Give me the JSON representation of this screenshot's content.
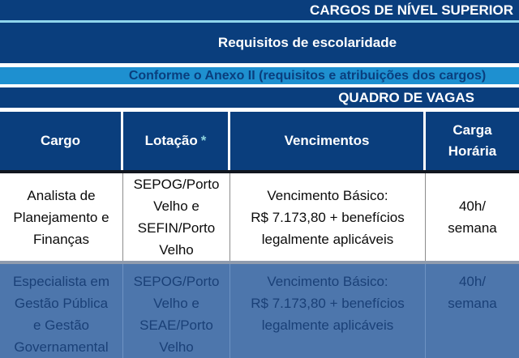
{
  "banners": {
    "cargos_nivel_superior": "CARGOS DE NÍVEL SUPERIOR",
    "requisitos_escolaridade": "Requisitos de escolaridade",
    "conforme_anexo": "Conforme o Anexo II (requisitos e atribuições dos cargos)",
    "quadro_de_vagas": "QUADRO DE VAGAS"
  },
  "colors": {
    "navy": "#0A3E7D",
    "light_blue": "#1E90D0",
    "cyan_separator": "#8FD5EC",
    "selection_blue": "#4D76AC",
    "selection_text": "#1A4077"
  },
  "table": {
    "headers": {
      "cargo": "Cargo",
      "lotacao": "Lotação",
      "lotacao_note": "*",
      "vencimentos": "Vencimentos",
      "carga_horaria": "Carga\nHorária"
    },
    "rows": [
      {
        "cargo": "Analista de\nPlanejamento e\nFinanças",
        "lotacao": "SEPOG/Porto\nVelho e\nSEFIN/Porto\nVelho",
        "vencimentos": "Vencimento Básico:\nR$ 7.173,80 + benefícios\nlegalmente aplicáveis",
        "carga_horaria": "40h/\nsemana",
        "state": "normal"
      },
      {
        "cargo": "Especialista em\nGestão Pública\ne Gestão\nGovernamental",
        "lotacao": "SEPOG/Porto\nVelho e\nSEAE/Porto\nVelho",
        "vencimentos": "Vencimento Básico:\nR$ 7.173,80 + benefícios\nlegalmente aplicáveis",
        "carga_horaria": "40h/\nsemana",
        "state": "selected"
      }
    ]
  }
}
